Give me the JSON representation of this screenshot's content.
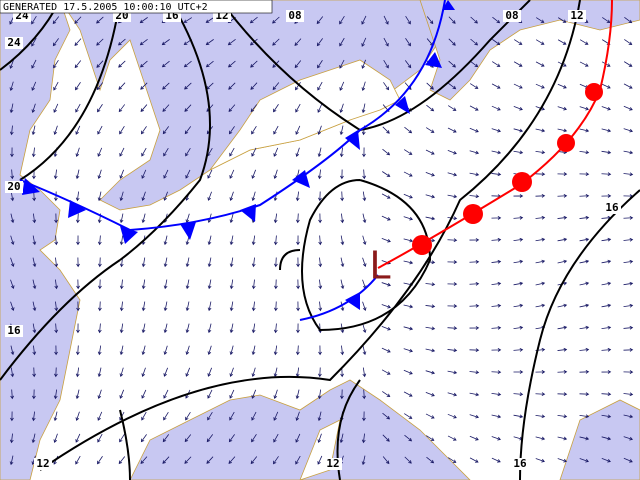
{
  "header": {
    "generated": "GENERATED 17.5.2005 10:00:10 UTC+2"
  },
  "isobar_labels": [
    "24",
    "20",
    "16",
    "12",
    "08",
    "08",
    "12",
    "24",
    "20",
    "16",
    "16",
    "12",
    "12",
    "16"
  ],
  "low_pressure": "L"
}
